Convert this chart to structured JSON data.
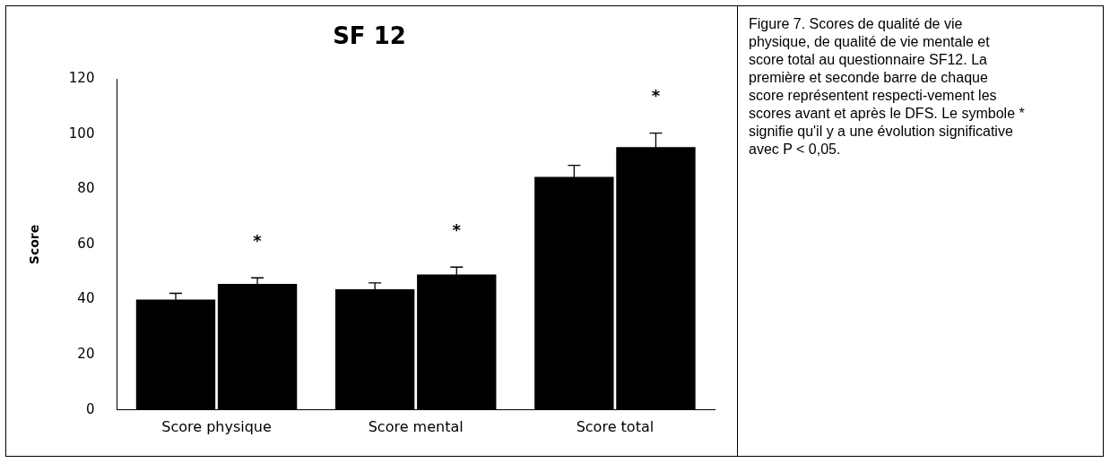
{
  "chart_data": {
    "type": "bar",
    "title": "SF 12",
    "ylabel": "Score",
    "categories": [
      "Score physique",
      "Score mental",
      "Score total"
    ],
    "series": [
      {
        "color": "#000000",
        "values": [
          40,
          43.8,
          84.5
        ],
        "errors": [
          2.3,
          2.3,
          4.2
        ]
      },
      {
        "color": "#000000",
        "values": [
          45.7,
          49.1,
          95.3
        ],
        "errors": [
          2.2,
          2.7,
          5.1
        ],
        "value_labels": [
          "*",
          "*",
          "*"
        ]
      }
    ],
    "ylim": [
      0,
      120
    ],
    "yticks": [
      0,
      20,
      40,
      60,
      80,
      100,
      120
    ],
    "grid": false,
    "legend": false,
    "annotations": [
      "Figure 7. Scores de qualité de vie physique, de qualité de vie mentale et score total au questionnaire SF12. La première et seconde barre de chaque score représentent respecti-vement les scores avant et après le DFS. Le symbole * signifie qu'il y a une évolution significative avec P < 0,05."
    ]
  }
}
